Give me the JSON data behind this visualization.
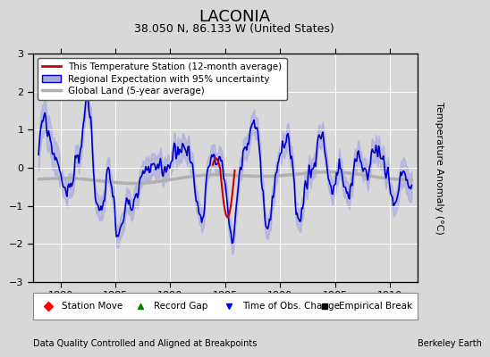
{
  "title": "LACONIA",
  "subtitle": "38.050 N, 86.133 W (United States)",
  "xlabel_left": "Data Quality Controlled and Aligned at Breakpoints",
  "xlabel_right": "Berkeley Earth",
  "ylabel": "Temperature Anomaly (°C)",
  "xlim": [
    1877.5,
    1912.5
  ],
  "ylim": [
    -3,
    3
  ],
  "yticks": [
    -3,
    -2,
    -1,
    0,
    1,
    2,
    3
  ],
  "xticks": [
    1880,
    1885,
    1890,
    1895,
    1900,
    1905,
    1910
  ],
  "bg_color": "#d8d8d8",
  "plot_bg_color": "#d8d8d8",
  "title_fontsize": 13,
  "subtitle_fontsize": 9,
  "legend_fontsize": 7.5,
  "axis_fontsize": 8,
  "tick_fontsize": 8,
  "regional_color": "#0000cc",
  "regional_fill_color": "#aaaadd",
  "station_color": "#cc0000",
  "global_color": "#b0b0b0",
  "global_lw": 2.5,
  "regional_lw": 1.2,
  "station_lw": 1.5
}
